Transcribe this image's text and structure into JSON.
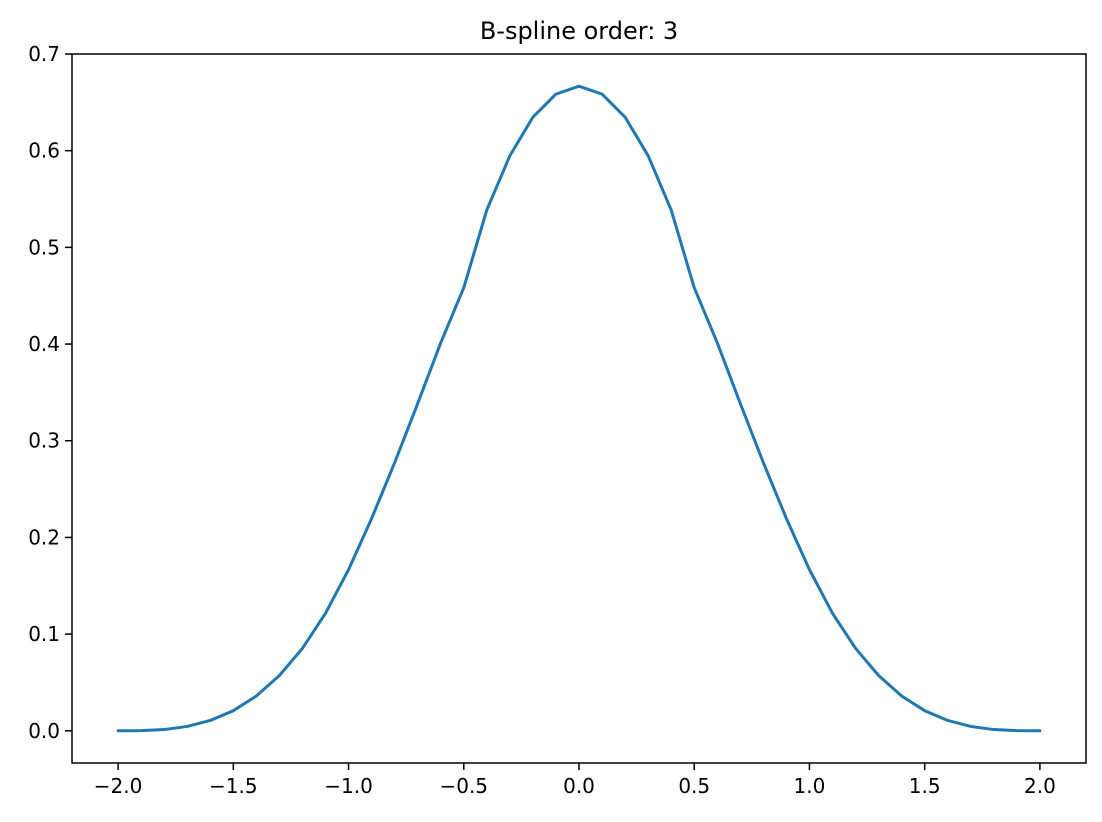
{
  "chart_data": {
    "type": "line",
    "title": "B-spline order: 3",
    "xlabel": "",
    "ylabel": "",
    "xlim": [
      -2.2,
      2.2
    ],
    "ylim": [
      -0.0333,
      0.7
    ],
    "x_ticks": [
      -2.0,
      -1.5,
      -1.0,
      -0.5,
      0.0,
      0.5,
      1.0,
      1.5,
      2.0
    ],
    "x_tick_labels": [
      "−2.0",
      "−1.5",
      "−1.0",
      "−0.5",
      "0.0",
      "0.5",
      "1.0",
      "1.5",
      "2.0"
    ],
    "y_ticks": [
      0.0,
      0.1,
      0.2,
      0.3,
      0.4,
      0.5,
      0.6,
      0.7
    ],
    "y_tick_labels": [
      "0.0",
      "0.1",
      "0.2",
      "0.3",
      "0.4",
      "0.5",
      "0.6",
      "0.7"
    ],
    "grid": false,
    "series": [
      {
        "color": "#1f77b4",
        "x": [
          -2.0,
          -1.9,
          -1.8,
          -1.7,
          -1.6,
          -1.5,
          -1.4,
          -1.3,
          -1.2,
          -1.1,
          -1.0,
          -0.9,
          -0.8,
          -0.7,
          -0.6,
          -0.5,
          -0.4,
          -0.3,
          -0.2,
          -0.1,
          0.0,
          0.1,
          0.2,
          0.3,
          0.4,
          0.5,
          0.6,
          0.7,
          0.8,
          0.9,
          1.0,
          1.1,
          1.2,
          1.3,
          1.4,
          1.5,
          1.6,
          1.7,
          1.8,
          1.9,
          2.0
        ],
        "y": [
          0.0,
          0.0002,
          0.0013,
          0.0045,
          0.0107,
          0.0208,
          0.036,
          0.0572,
          0.0853,
          0.1215,
          0.1667,
          0.2195,
          0.2773,
          0.3385,
          0.4013,
          0.4583,
          0.5387,
          0.5948,
          0.6347,
          0.6585,
          0.6667,
          0.6585,
          0.6347,
          0.5948,
          0.5387,
          0.4583,
          0.4013,
          0.3385,
          0.2773,
          0.2195,
          0.1667,
          0.1215,
          0.0853,
          0.0572,
          0.036,
          0.0208,
          0.0107,
          0.0045,
          0.0013,
          0.0002,
          0.0
        ]
      }
    ]
  }
}
